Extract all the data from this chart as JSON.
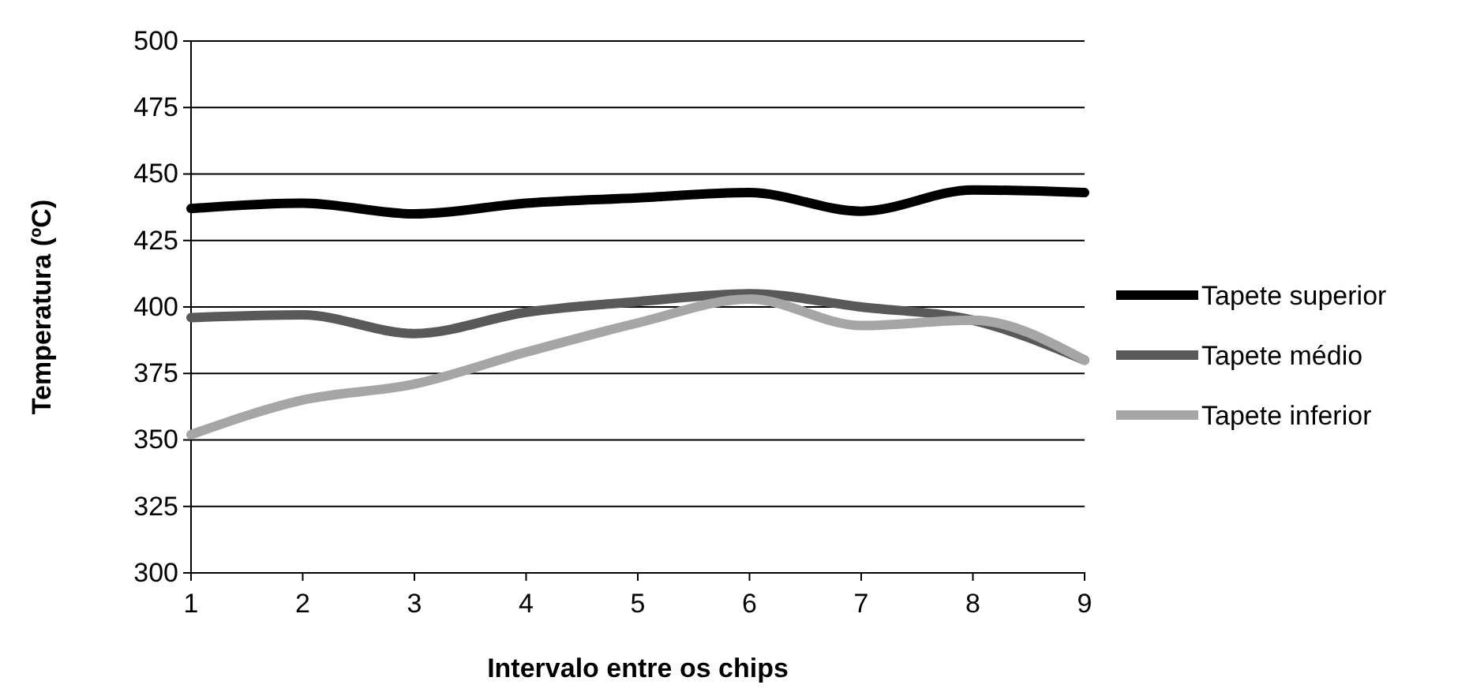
{
  "chart_data": {
    "type": "line",
    "xlabel": "Intervalo entre os chips",
    "ylabel": "Temperatura (ºC)",
    "x": [
      1,
      2,
      3,
      4,
      5,
      6,
      7,
      8,
      9
    ],
    "xlim": [
      1,
      9
    ],
    "xticks": [
      1,
      2,
      3,
      4,
      5,
      6,
      7,
      8,
      9
    ],
    "ylim": [
      300,
      500
    ],
    "yticks": [
      300,
      325,
      350,
      375,
      400,
      425,
      450,
      475,
      500
    ],
    "grid": "y",
    "legend": "right",
    "marker": "none",
    "line_style": "solid",
    "series": [
      {
        "name": "Tapete superior",
        "color": "#000000",
        "values": [
          437,
          439,
          435,
          439,
          441,
          443,
          436,
          444,
          443
        ]
      },
      {
        "name": "Tapete médio",
        "color": "#595959",
        "values": [
          396,
          397,
          390,
          398,
          402,
          405,
          400,
          395,
          380
        ]
      },
      {
        "name": "Tapete inferior",
        "color": "#a6a6a6",
        "values": [
          352,
          365,
          371,
          383,
          394,
          403,
          393,
          395,
          380
        ]
      }
    ]
  }
}
